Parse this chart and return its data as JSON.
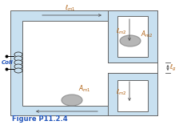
{
  "bg_color": "#c8e0f0",
  "core_edge_color": "#666666",
  "fig_label": "Figure P11.2.4",
  "fig_label_color": "#2255bb",
  "label_color": "#b06010",
  "arrow_color": "#555555",
  "figsize": [
    2.29,
    1.61
  ],
  "dpi": 100,
  "coil_label_color": "#2255bb",
  "white": "#ffffff"
}
